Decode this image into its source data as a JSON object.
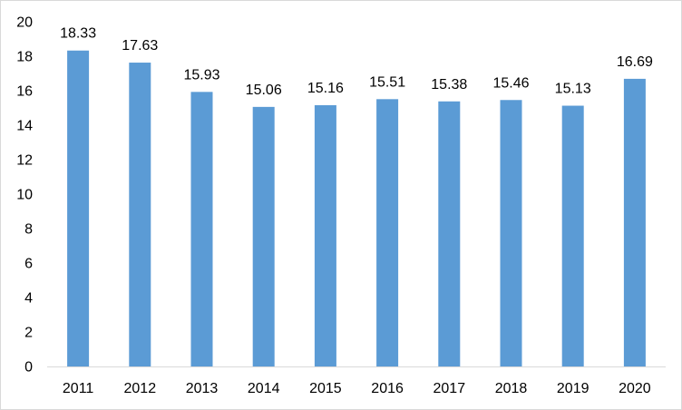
{
  "chart_data": {
    "type": "bar",
    "categories": [
      "2011",
      "2012",
      "2013",
      "2014",
      "2015",
      "2016",
      "2017",
      "2018",
      "2019",
      "2020"
    ],
    "values": [
      18.33,
      17.63,
      15.93,
      15.06,
      15.16,
      15.51,
      15.38,
      15.46,
      15.13,
      16.69
    ],
    "data_labels": [
      "18.33",
      "17.63",
      "15.93",
      "15.06",
      "15.16",
      "15.51",
      "15.38",
      "15.46",
      "15.13",
      "16.69"
    ],
    "yticks": [
      "0",
      "2",
      "4",
      "6",
      "8",
      "10",
      "12",
      "14",
      "16",
      "18",
      "20"
    ],
    "ylim": [
      0,
      20
    ],
    "grid": false,
    "legend": "none",
    "bar_color": "#5b9bd5"
  }
}
